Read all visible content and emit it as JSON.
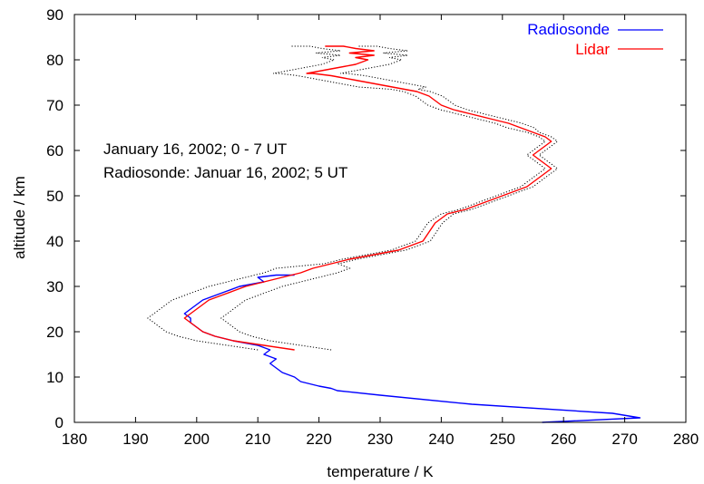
{
  "chart_data": {
    "type": "line",
    "xlabel": "temperature / K",
    "ylabel": "altitude / km",
    "xlim": [
      180,
      280
    ],
    "ylim": [
      0,
      90
    ],
    "xticks": [
      180,
      190,
      200,
      210,
      220,
      230,
      240,
      250,
      260,
      270,
      280
    ],
    "yticks": [
      0,
      10,
      20,
      30,
      40,
      50,
      60,
      70,
      80,
      90
    ],
    "grid": false,
    "legend_position": "top-right",
    "annotations": [
      "January 16, 2002; 0 - 7 UT",
      "Radiosonde: Januar 16, 2002; 5 UT"
    ],
    "series": [
      {
        "name": "Radiosonde",
        "color": "#0000ff",
        "x": [
          256.5,
          272.5,
          268,
          245,
          230,
          223,
          222,
          220,
          217,
          216,
          214,
          213,
          212,
          213,
          211,
          212,
          210,
          206,
          203,
          201,
          200,
          199,
          199,
          198,
          199,
          200,
          201,
          203,
          205,
          207,
          209,
          211,
          210,
          213,
          216
        ],
        "y": [
          0,
          1,
          2,
          4,
          6,
          7,
          7.5,
          8,
          9,
          10,
          11,
          12,
          13,
          14,
          15,
          16,
          17,
          18,
          19,
          20,
          21,
          22,
          23,
          24,
          25,
          26,
          27,
          28,
          29,
          30,
          30.5,
          31,
          32,
          32.5,
          32.5
        ]
      },
      {
        "name": "Lidar",
        "color": "#ff0000",
        "x": [
          216,
          211,
          206,
          203,
          201,
          200,
          199,
          198,
          199,
          200,
          201,
          202,
          204,
          206,
          208,
          211,
          214,
          217,
          219,
          222,
          225,
          229,
          233,
          235,
          237,
          238,
          239,
          241,
          244,
          246,
          248,
          250,
          252,
          254,
          255,
          256,
          257,
          258,
          257,
          256,
          255,
          256,
          257,
          258,
          257,
          255,
          253,
          251,
          248,
          245,
          242,
          240,
          239,
          238,
          237,
          236,
          234,
          232,
          230,
          228,
          226,
          224,
          222,
          219,
          218,
          222,
          226,
          228,
          226,
          229,
          225,
          229,
          226,
          224,
          221
        ],
        "y": [
          16,
          17,
          18,
          19,
          20,
          21,
          22,
          23,
          24,
          25,
          26,
          27,
          28,
          29,
          30,
          31,
          32,
          33,
          34,
          35,
          36,
          37,
          38,
          39,
          40,
          42,
          44,
          46,
          47,
          48,
          49,
          50,
          51,
          52,
          53,
          54,
          55,
          56,
          57,
          58,
          59,
          60,
          61,
          62,
          63,
          64,
          65,
          66,
          67,
          68,
          69,
          70,
          71,
          72,
          72.5,
          73,
          73.5,
          74,
          74.5,
          75,
          75.5,
          76,
          76.5,
          77,
          77,
          78,
          79,
          80,
          80.5,
          81,
          81.5,
          82,
          82.5,
          83,
          83
        ]
      }
    ]
  }
}
